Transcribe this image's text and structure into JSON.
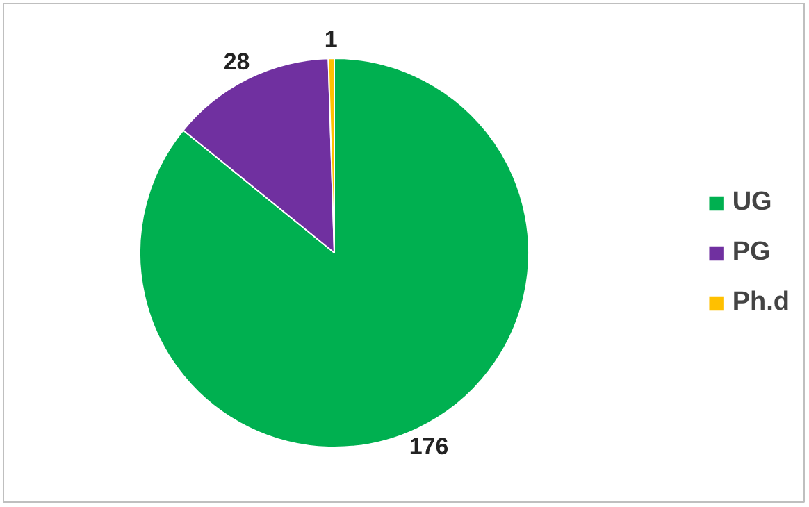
{
  "chart_data": {
    "type": "pie",
    "categories": [
      "UG",
      "PG",
      "Ph.d"
    ],
    "values": [
      176,
      28,
      1
    ],
    "colors": [
      "#00b050",
      "#7030a0",
      "#ffc000"
    ],
    "data_labels": true,
    "legend": "right"
  }
}
